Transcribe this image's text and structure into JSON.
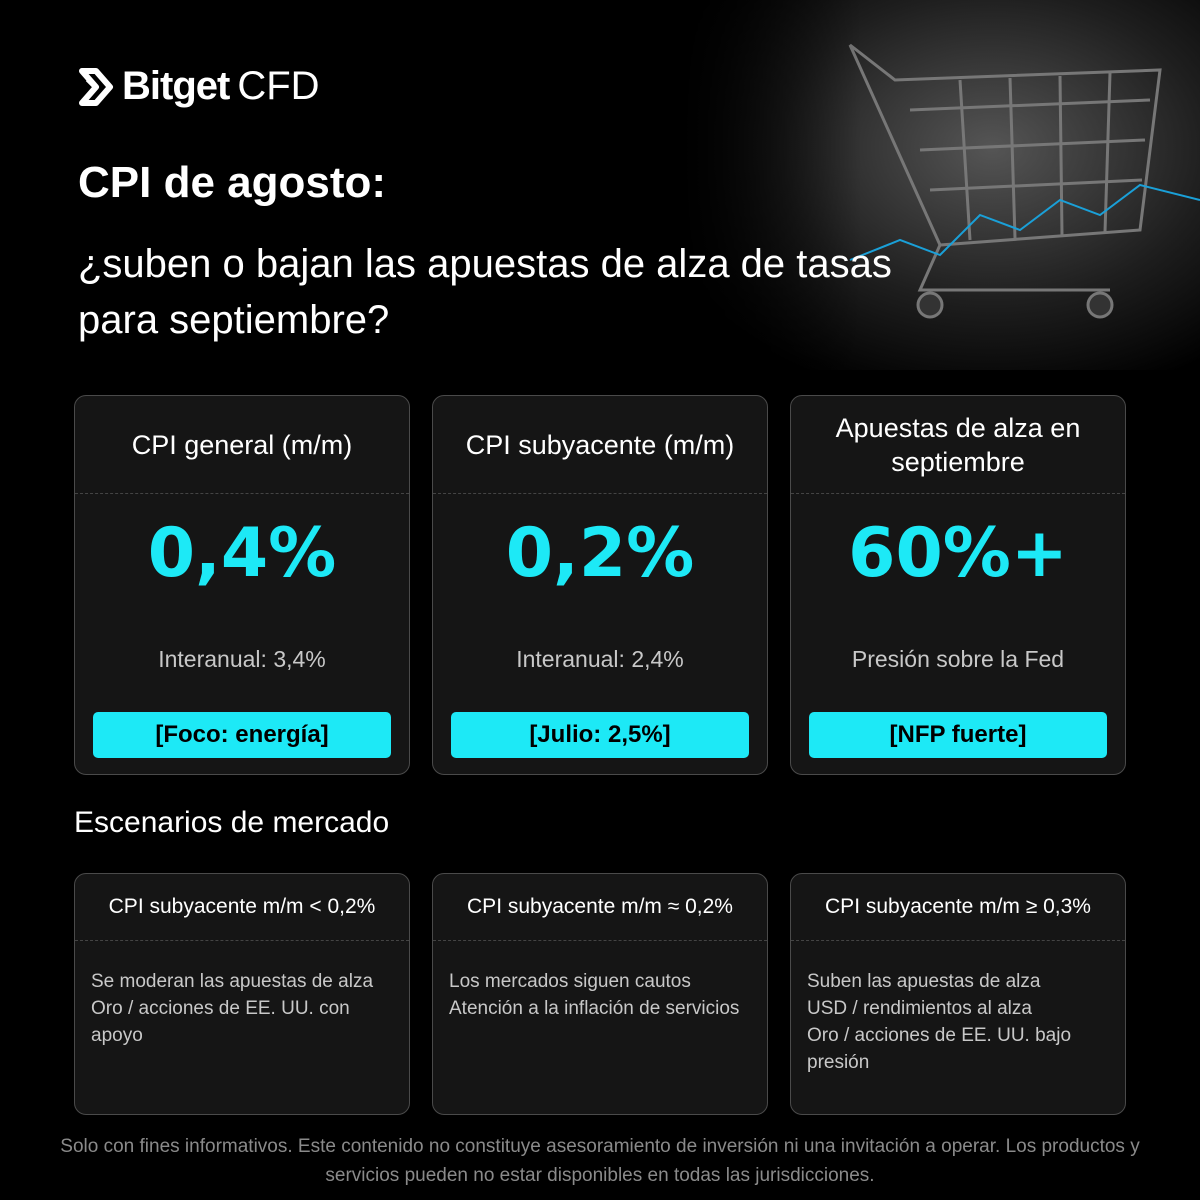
{
  "logo": {
    "brand": "Bitget",
    "suffix": "CFD"
  },
  "header": {
    "title": "CPI de agosto:",
    "subtitle": "¿suben o bajan las apuestas de alza de tasas para septiembre?"
  },
  "cards": [
    {
      "title": "CPI general (m/m)",
      "value": "0,4%",
      "note": "Interanual: 3,4%",
      "tag": "[Foco: energía]"
    },
    {
      "title": "CPI subyacente (m/m)",
      "value": "0,2%",
      "note": "Interanual: 2,4%",
      "tag": "[Julio: 2,5%]"
    },
    {
      "title": "Apuestas de alza en septiembre",
      "value": "60%+",
      "note": "Presión sobre la Fed",
      "tag": "[NFP fuerte]"
    }
  ],
  "scenarios_title": "Escenarios de mercado",
  "scenarios": [
    {
      "title": "CPI subyacente m/m < 0,2%",
      "lines": [
        "Se moderan las apuestas de alza",
        "Oro / acciones de EE. UU. con apoyo"
      ]
    },
    {
      "title": "CPI subyacente m/m ≈ 0,2%",
      "lines": [
        "Los mercados siguen cautos",
        "Atención a la inflación de servicios"
      ]
    },
    {
      "title": "CPI subyacente m/m ≥ 0,3%",
      "lines": [
        "Suben las apuestas de alza",
        "USD / rendimientos al alza",
        "Oro / acciones de EE. UU. bajo presión"
      ]
    }
  ],
  "disclaimer": "Solo con fines informativos. Este contenido no constituye asesoramiento de inversión ni una invitación a operar. Los productos y servicios pueden no estar disponibles en todas las jurisdicciones."
}
